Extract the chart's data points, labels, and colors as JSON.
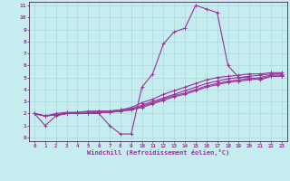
{
  "xlabel": "Windchill (Refroidissement éolien,°C)",
  "background_color": "#c5ecee",
  "line_color": "#993399",
  "grid_color": "#aad8da",
  "spine_color": "#330033",
  "xlim": [
    -0.5,
    23.5
  ],
  "ylim": [
    -0.3,
    11.3
  ],
  "xticks": [
    0,
    1,
    2,
    3,
    4,
    5,
    6,
    7,
    8,
    9,
    10,
    11,
    12,
    13,
    14,
    15,
    16,
    17,
    18,
    19,
    20,
    21,
    22,
    23
  ],
  "yticks": [
    0,
    1,
    2,
    3,
    4,
    5,
    6,
    7,
    8,
    9,
    10,
    11
  ],
  "curves": [
    {
      "x": [
        0,
        1,
        2,
        3,
        4,
        5,
        6,
        7,
        8,
        9,
        10,
        11,
        12,
        13,
        14,
        15,
        16,
        17,
        18,
        19,
        20,
        21,
        22,
        23
      ],
      "y": [
        2,
        1,
        1.8,
        2,
        2,
        2,
        2,
        1,
        0.3,
        0.3,
        4.2,
        5.3,
        7.8,
        8.8,
        9.1,
        11,
        10.7,
        10.4,
        6.0,
        5.0,
        5.0,
        4.8,
        5.1,
        5.1
      ]
    },
    {
      "x": [
        0,
        1,
        2,
        3,
        4,
        5,
        6,
        7,
        8,
        9,
        10,
        11,
        12,
        13,
        14,
        15,
        16,
        17,
        18,
        19,
        20,
        21,
        22,
        23
      ],
      "y": [
        2,
        1.8,
        1.9,
        2.0,
        2.0,
        2.0,
        2.1,
        2.1,
        2.2,
        2.3,
        2.5,
        2.8,
        3.1,
        3.4,
        3.6,
        3.9,
        4.2,
        4.4,
        4.6,
        4.7,
        4.8,
        4.9,
        5.1,
        5.1
      ]
    },
    {
      "x": [
        0,
        1,
        2,
        3,
        4,
        5,
        6,
        7,
        8,
        9,
        10,
        11,
        12,
        13,
        14,
        15,
        16,
        17,
        18,
        19,
        20,
        21,
        22,
        23
      ],
      "y": [
        2,
        1.8,
        1.9,
        2.0,
        2.0,
        2.0,
        2.1,
        2.1,
        2.2,
        2.3,
        2.6,
        2.9,
        3.2,
        3.5,
        3.7,
        4.0,
        4.3,
        4.5,
        4.7,
        4.8,
        4.9,
        5.0,
        5.2,
        5.2
      ]
    },
    {
      "x": [
        0,
        1,
        2,
        3,
        4,
        5,
        6,
        7,
        8,
        9,
        10,
        11,
        12,
        13,
        14,
        15,
        16,
        17,
        18,
        19,
        20,
        21,
        22,
        23
      ],
      "y": [
        2,
        1.8,
        1.9,
        2.0,
        2.1,
        2.1,
        2.2,
        2.2,
        2.3,
        2.4,
        2.7,
        3.0,
        3.3,
        3.6,
        3.9,
        4.2,
        4.5,
        4.7,
        4.9,
        5.0,
        5.1,
        5.2,
        5.3,
        5.3
      ]
    },
    {
      "x": [
        0,
        1,
        2,
        3,
        4,
        5,
        6,
        7,
        8,
        9,
        10,
        11,
        12,
        13,
        14,
        15,
        16,
        17,
        18,
        19,
        20,
        21,
        22,
        23
      ],
      "y": [
        2,
        1.8,
        2.0,
        2.1,
        2.1,
        2.2,
        2.2,
        2.2,
        2.3,
        2.5,
        2.9,
        3.2,
        3.6,
        3.9,
        4.2,
        4.5,
        4.8,
        5.0,
        5.1,
        5.2,
        5.3,
        5.3,
        5.4,
        5.4
      ]
    }
  ]
}
